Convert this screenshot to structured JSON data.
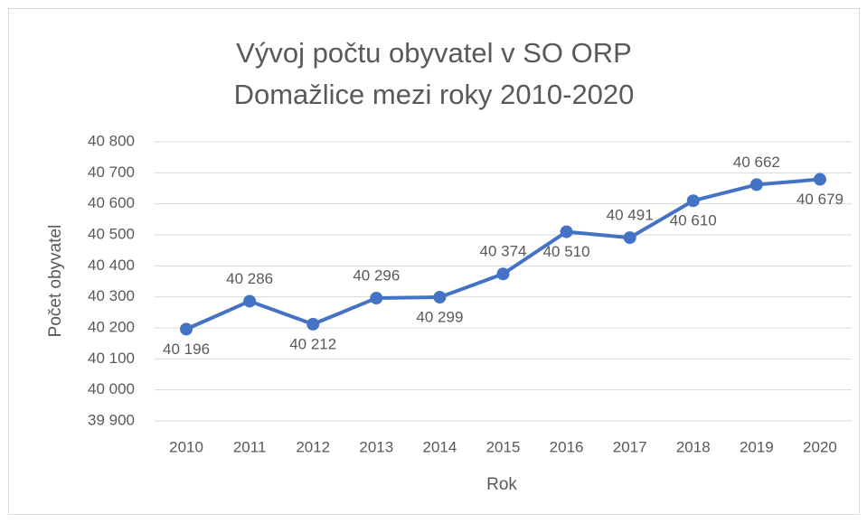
{
  "chart_data": {
    "type": "line",
    "title": "Vývoj počtu obyvatel v SO ORP Domažlice mezi roky 2010-2020",
    "x_label": "Rok",
    "y_label": "Počet obyvatel",
    "categories": [
      "2010",
      "2011",
      "2012",
      "2013",
      "2014",
      "2015",
      "2016",
      "2017",
      "2018",
      "2019",
      "2020"
    ],
    "series": [
      {
        "name": "Počet obyvatel",
        "color": "#4472c4",
        "values": [
          40196,
          40286,
          40212,
          40296,
          40299,
          40374,
          40510,
          40491,
          40610,
          40662,
          40679
        ],
        "value_labels": [
          "40 196",
          "40 286",
          "40 212",
          "40 296",
          "40 299",
          "40 374",
          "40 510",
          "40 491",
          "40 610",
          "40 662",
          "40 679"
        ]
      }
    ],
    "ylim": [
      39900,
      40800
    ],
    "yticks": [
      {
        "value": 39900,
        "label": "39 900"
      },
      {
        "value": 40000,
        "label": "40 000"
      },
      {
        "value": 40100,
        "label": "40 100"
      },
      {
        "value": 40200,
        "label": "40 200"
      },
      {
        "value": 40300,
        "label": "40 300"
      },
      {
        "value": 40400,
        "label": "40 400"
      },
      {
        "value": 40500,
        "label": "40 500"
      },
      {
        "value": 40600,
        "label": "40 600"
      },
      {
        "value": 40700,
        "label": "40 700"
      },
      {
        "value": 40800,
        "label": "40 800"
      }
    ],
    "grid": true
  }
}
